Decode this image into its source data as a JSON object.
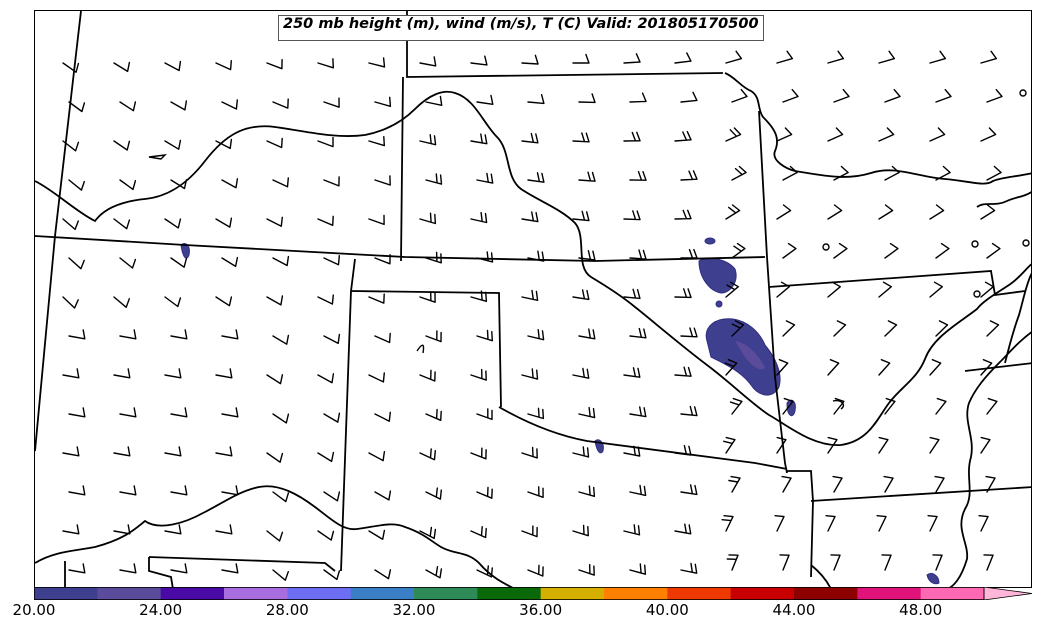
{
  "title": "250 mb height (m), wind (m/s), T (C) Valid: 201805170500",
  "colorbar": {
    "ticks": [
      "20.00",
      "24.00",
      "28.00",
      "32.00",
      "36.00",
      "40.00",
      "44.00",
      "48.00"
    ],
    "tick_values": [
      20,
      24,
      28,
      32,
      36,
      40,
      44,
      48
    ],
    "min": 20,
    "max": 52,
    "step": 2,
    "extend": "max",
    "colors": [
      "#3f3f8f",
      "#5a4c9a",
      "#4a0aa6",
      "#a86ee0",
      "#6e6ef5",
      "#3a7fc6",
      "#2e8b57",
      "#0a6a0a",
      "#d6b000",
      "#ff8000",
      "#ee3a00",
      "#c80000",
      "#8c0000",
      "#e0137a",
      "#ff69b4"
    ],
    "extend_color": "#ffb6d9"
  }
}
